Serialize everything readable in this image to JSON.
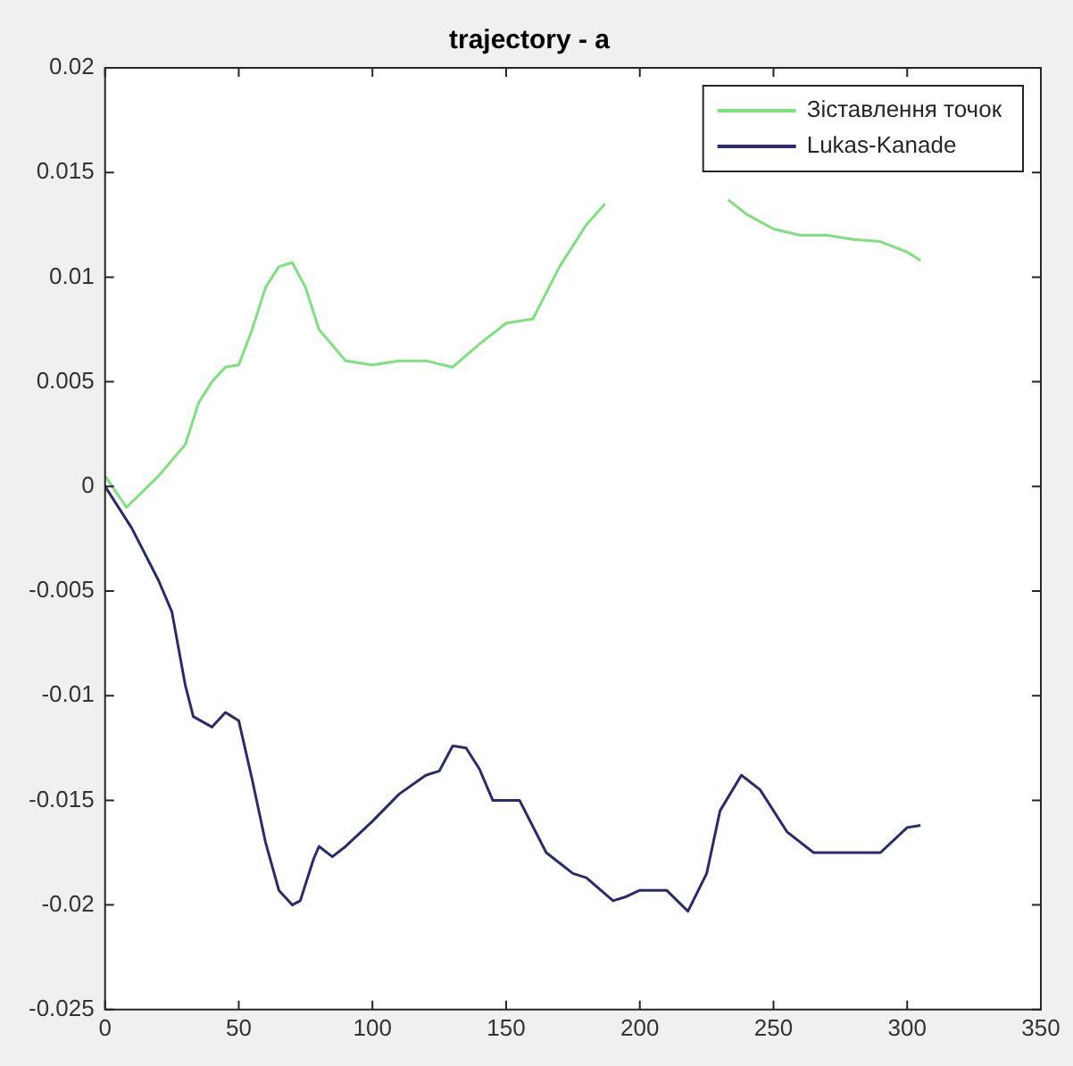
{
  "chart_data": {
    "type": "line",
    "title": "trajectory - a",
    "xlim": [
      0,
      350
    ],
    "xticks": [
      0,
      50,
      100,
      150,
      200,
      250,
      300,
      350
    ],
    "ylim": [
      -0.025,
      0.02
    ],
    "yticks": [
      -0.025,
      -0.02,
      -0.015,
      -0.01,
      -0.005,
      0,
      0.005,
      0.01,
      0.015,
      0.02
    ],
    "grid": false,
    "legend": "top right",
    "marker": "none",
    "line_style": "solid",
    "series": [
      {
        "name": "Зіставлення точок",
        "color": "#80e080",
        "x": [
          0,
          8,
          20,
          30,
          35,
          40,
          45,
          50,
          55,
          60,
          65,
          70,
          75,
          80,
          90,
          100,
          110,
          120,
          130,
          140,
          150,
          160,
          170,
          180,
          187,
          195,
          225,
          233,
          240,
          250,
          260,
          270,
          280,
          290,
          300,
          305
        ],
        "values": [
          0.0005,
          -0.001,
          0.0005,
          0.002,
          0.004,
          0.005,
          0.0057,
          0.0058,
          0.0075,
          0.0095,
          0.0105,
          0.0107,
          0.0095,
          0.0075,
          0.006,
          0.0058,
          0.006,
          0.006,
          0.0057,
          0.0068,
          0.0078,
          0.008,
          0.0105,
          0.0125,
          0.0135,
          null,
          null,
          0.0137,
          0.013,
          0.0123,
          0.012,
          0.012,
          0.0118,
          0.0117,
          0.0112,
          0.0108
        ]
      },
      {
        "name": "Lukas-Kanade",
        "color": "#2b2b6b",
        "x": [
          0,
          10,
          20,
          25,
          30,
          33,
          40,
          45,
          50,
          55,
          60,
          65,
          70,
          73,
          78,
          80,
          85,
          90,
          100,
          110,
          120,
          125,
          130,
          135,
          140,
          145,
          155,
          165,
          175,
          180,
          190,
          195,
          200,
          210,
          218,
          225,
          230,
          238,
          245,
          255,
          265,
          275,
          290,
          300,
          305
        ],
        "values": [
          0,
          -0.002,
          -0.0045,
          -0.006,
          -0.0095,
          -0.011,
          -0.0115,
          -0.0108,
          -0.0112,
          -0.014,
          -0.017,
          -0.0193,
          -0.02,
          -0.0198,
          -0.0178,
          -0.0172,
          -0.0177,
          -0.0172,
          -0.016,
          -0.0147,
          -0.0138,
          -0.0136,
          -0.0124,
          -0.0125,
          -0.0135,
          -0.015,
          -0.015,
          -0.0175,
          -0.0185,
          -0.0187,
          -0.0198,
          -0.0196,
          -0.0193,
          -0.0193,
          -0.0203,
          -0.0185,
          -0.0155,
          -0.0138,
          -0.0145,
          -0.0165,
          -0.0175,
          -0.0175,
          -0.0175,
          -0.0163,
          -0.0162
        ]
      }
    ]
  }
}
